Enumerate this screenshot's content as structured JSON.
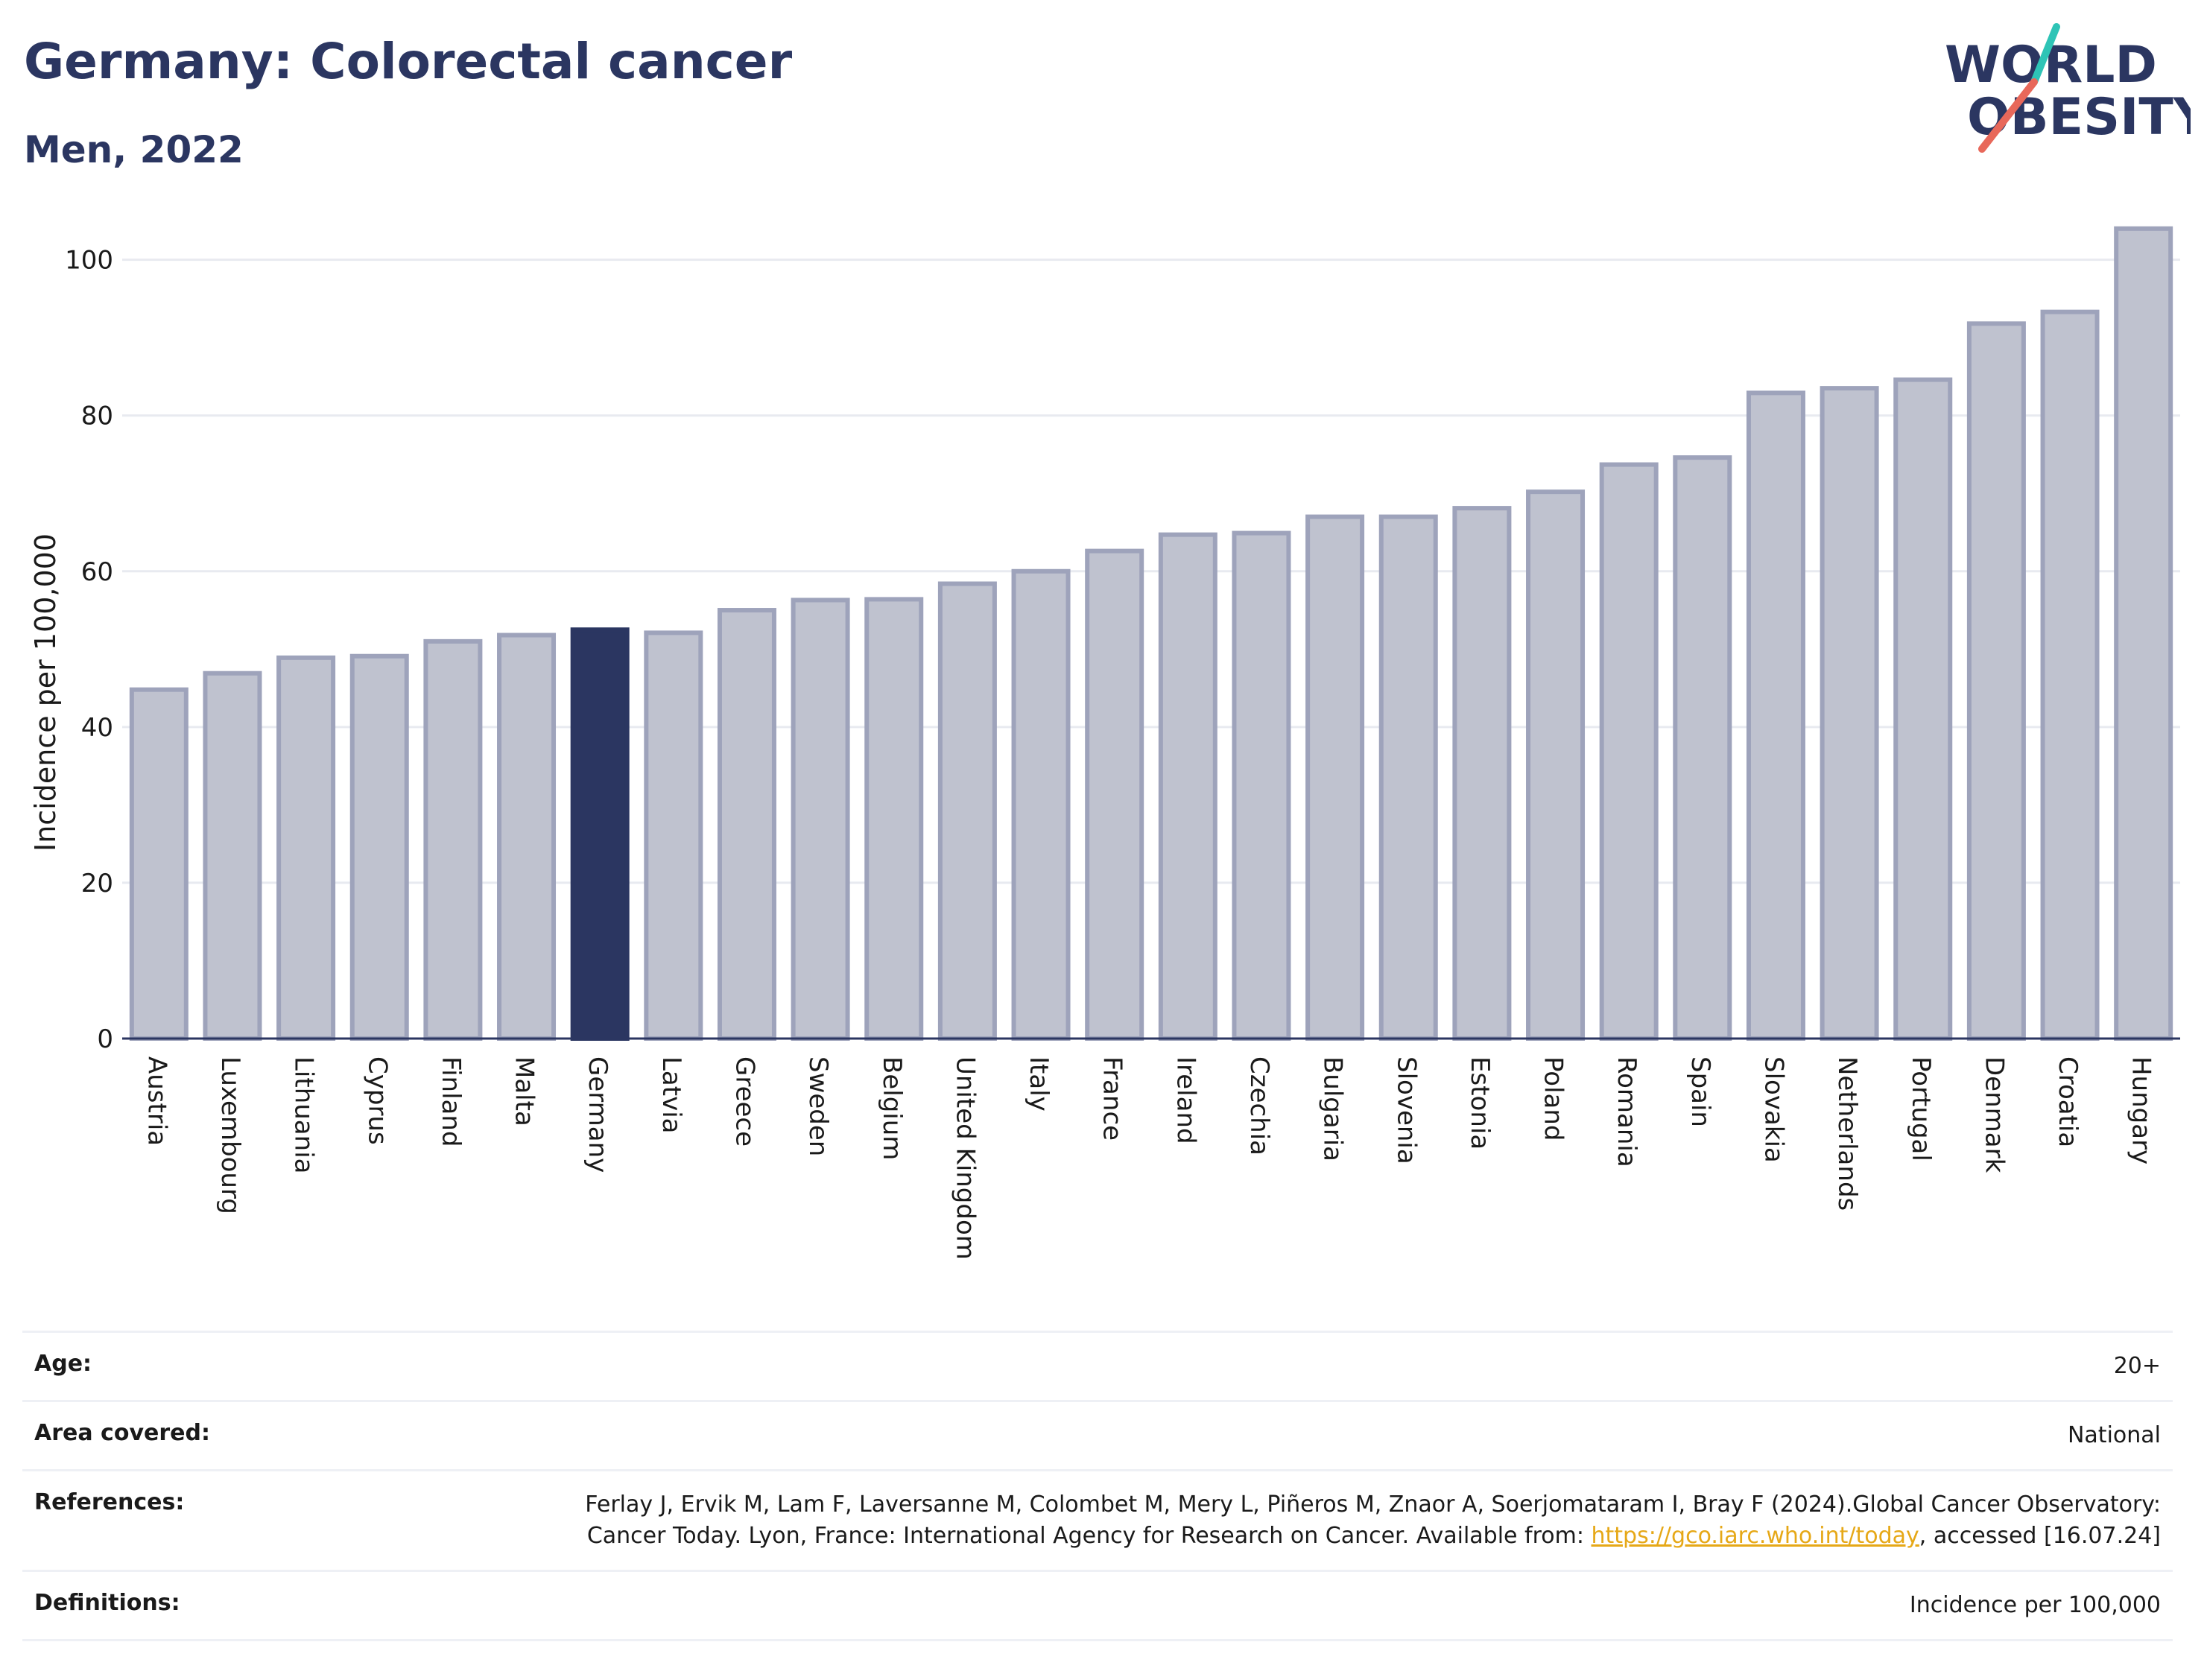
{
  "header": {
    "title": "Germany: Colorectal cancer",
    "subtitle": "Men, 2022"
  },
  "logo": {
    "line1": "WORLD",
    "line2": "OBESITY",
    "slash_colors": [
      "#2ec4b6",
      "#e8685a"
    ]
  },
  "chart_data": {
    "type": "bar",
    "ylabel": "Incidence per 100,000",
    "ylim": [
      0,
      108
    ],
    "yticks": [
      0,
      20,
      40,
      60,
      80,
      100
    ],
    "grid": true,
    "highlight": "Germany",
    "colors": {
      "bar": "#bfc2cf",
      "bar_border": "#9ea3bb",
      "highlight": "#2b3661",
      "grid": "#e8eaf0"
    },
    "categories": [
      "Austria",
      "Luxembourg",
      "Lithuania",
      "Cyprus",
      "Finland",
      "Malta",
      "Germany",
      "Latvia",
      "Greece",
      "Sweden",
      "Belgium",
      "United Kingdom",
      "Italy",
      "France",
      "Ireland",
      "Czechia",
      "Bulgaria",
      "Slovenia",
      "Estonia",
      "Poland",
      "Romania",
      "Spain",
      "Slovakia",
      "Netherlands",
      "Portugal",
      "Denmark",
      "Croatia",
      "Hungary"
    ],
    "values": [
      44.8,
      46.9,
      48.9,
      49.1,
      51.0,
      51.8,
      52.5,
      52.1,
      55.0,
      56.3,
      56.4,
      58.4,
      60.0,
      62.6,
      64.7,
      64.9,
      67.0,
      67.0,
      68.1,
      70.2,
      73.7,
      74.6,
      82.9,
      83.5,
      84.6,
      91.8,
      93.3,
      104.0
    ]
  },
  "info": {
    "age_label": "Age:",
    "age_value": "20+",
    "area_label": "Area covered:",
    "area_value": "National",
    "references_label": "References:",
    "references_text": "Ferlay J, Ervik M, Lam F, Laversanne M, Colombet M, Mery L, Piñeros M, Znaor A, Soerjomataram I, Bray F (2024).Global Cancer Observatory: Cancer Today. Lyon, France: International Agency for Research on Cancer. Available from: ",
    "references_link": "https://gco.iarc.who.int/today",
    "references_suffix": ", accessed [16.07.24]",
    "definitions_label": "Definitions:",
    "definitions_value": "Incidence per 100,000"
  }
}
